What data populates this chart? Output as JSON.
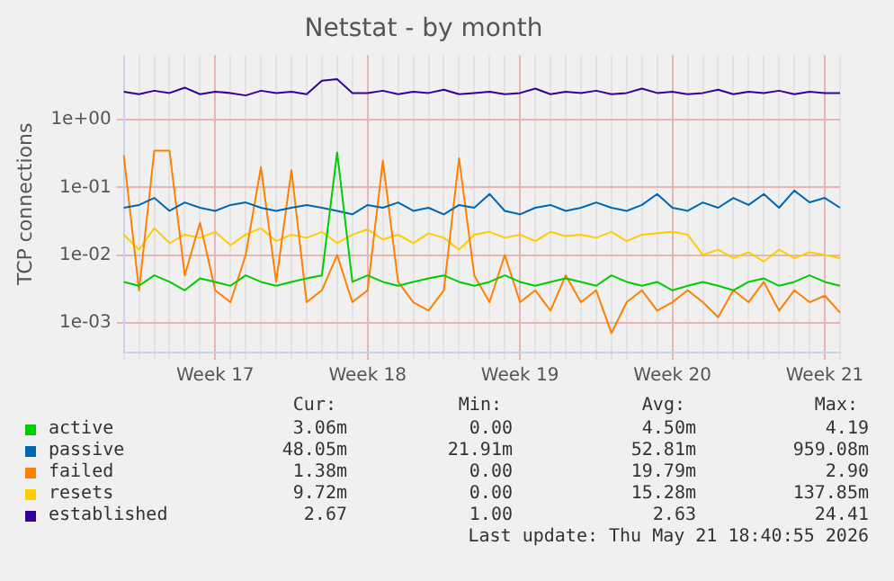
{
  "chart_data": {
    "type": "line",
    "title": "Netstat - by month",
    "ylabel": "TCP connections",
    "log": "y",
    "grid": true,
    "legend": "bottom",
    "ylim": [
      0.00036,
      9
    ],
    "yticks": [
      {
        "value": 0.001,
        "label": "1e-03"
      },
      {
        "value": 0.01,
        "label": "1e-02"
      },
      {
        "value": 0.1,
        "label": "1e-01"
      },
      {
        "value": 1,
        "label": "1e+00"
      }
    ],
    "categories": [
      null,
      null,
      null,
      null,
      null,
      null,
      "Week 17",
      null,
      null,
      null,
      null,
      null,
      null,
      null,
      null,
      null,
      "Week 18",
      null,
      null,
      null,
      null,
      null,
      null,
      null,
      null,
      null,
      "Week 19",
      null,
      null,
      null,
      null,
      null,
      null,
      null,
      null,
      null,
      "Week 20",
      null,
      null,
      null,
      null,
      null,
      null,
      null,
      null,
      null,
      "Week 21",
      null
    ],
    "series": [
      {
        "name": "active",
        "color": "#00cc00",
        "values": [
          0.004,
          0.0035,
          0.005,
          0.004,
          0.003,
          0.0045,
          0.004,
          0.0035,
          0.005,
          0.004,
          0.0035,
          0.004,
          0.0045,
          0.005,
          0.33,
          0.004,
          0.005,
          0.004,
          0.0035,
          0.004,
          0.0045,
          0.005,
          0.004,
          0.0035,
          0.004,
          0.005,
          0.004,
          0.0035,
          0.004,
          0.0045,
          0.004,
          0.0035,
          0.005,
          0.004,
          0.0035,
          0.004,
          0.003,
          0.0035,
          0.004,
          0.0035,
          0.003,
          0.004,
          0.0045,
          0.0035,
          0.004,
          0.005,
          0.004,
          0.0035
        ]
      },
      {
        "name": "passive",
        "color": "#0066b3",
        "values": [
          0.05,
          0.055,
          0.07,
          0.045,
          0.06,
          0.05,
          0.045,
          0.055,
          0.06,
          0.05,
          0.045,
          0.05,
          0.055,
          0.05,
          0.045,
          0.04,
          0.055,
          0.05,
          0.06,
          0.045,
          0.05,
          0.04,
          0.055,
          0.05,
          0.08,
          0.045,
          0.04,
          0.05,
          0.055,
          0.045,
          0.05,
          0.06,
          0.05,
          0.045,
          0.055,
          0.08,
          0.05,
          0.045,
          0.06,
          0.05,
          0.07,
          0.055,
          0.08,
          0.05,
          0.09,
          0.06,
          0.07,
          0.05
        ]
      },
      {
        "name": "failed",
        "color": "#ff8000",
        "values": [
          0.3,
          0.003,
          0.35,
          0.35,
          0.005,
          0.03,
          0.003,
          0.002,
          0.01,
          0.2,
          0.004,
          0.18,
          0.002,
          0.003,
          0.01,
          0.002,
          0.003,
          0.25,
          0.004,
          0.002,
          0.0015,
          0.003,
          0.27,
          0.005,
          0.002,
          0.01,
          0.002,
          0.003,
          0.0015,
          0.005,
          0.002,
          0.003,
          0.0007,
          0.002,
          0.003,
          0.0015,
          0.002,
          0.003,
          0.002,
          0.0012,
          0.003,
          0.002,
          0.004,
          0.0015,
          0.003,
          0.002,
          0.0025,
          0.0014
        ]
      },
      {
        "name": "resets",
        "color": "#ffcc00",
        "values": [
          0.02,
          0.012,
          0.025,
          0.015,
          0.02,
          0.018,
          0.022,
          0.014,
          0.02,
          0.025,
          0.016,
          0.02,
          0.018,
          0.022,
          0.015,
          0.02,
          0.024,
          0.017,
          0.02,
          0.015,
          0.021,
          0.018,
          0.012,
          0.02,
          0.022,
          0.018,
          0.02,
          0.016,
          0.022,
          0.019,
          0.02,
          0.018,
          0.022,
          0.016,
          0.02,
          0.021,
          0.022,
          0.02,
          0.01,
          0.012,
          0.009,
          0.011,
          0.008,
          0.012,
          0.009,
          0.011,
          0.01,
          0.009
        ]
      },
      {
        "name": "established",
        "color": "#330099",
        "values": [
          2.6,
          2.4,
          2.7,
          2.5,
          3.0,
          2.4,
          2.6,
          2.5,
          2.3,
          2.7,
          2.5,
          2.6,
          2.4,
          3.8,
          4.0,
          2.5,
          2.5,
          2.7,
          2.4,
          2.6,
          2.5,
          2.8,
          2.4,
          2.5,
          2.6,
          2.4,
          2.5,
          2.9,
          2.4,
          2.6,
          2.5,
          2.7,
          2.4,
          2.5,
          2.9,
          2.5,
          2.6,
          2.4,
          2.5,
          2.8,
          2.4,
          2.6,
          2.5,
          2.7,
          2.4,
          2.6,
          2.5,
          2.5
        ]
      }
    ],
    "annotations": [
      "Cur:",
      "Min:",
      "Avg:",
      "Max:",
      "3.06m",
      "0.00",
      "4.50m",
      "4.19",
      "48.05m",
      "21.91m",
      "52.81m",
      "959.08m",
      "1.38m",
      "0.00",
      "19.79m",
      "2.90",
      "9.72m",
      "0.00",
      "15.28m",
      "137.85m",
      "2.67",
      "1.00",
      "2.63",
      "24.41",
      "Last update: Thu May 21 18:40:55 2026"
    ]
  }
}
